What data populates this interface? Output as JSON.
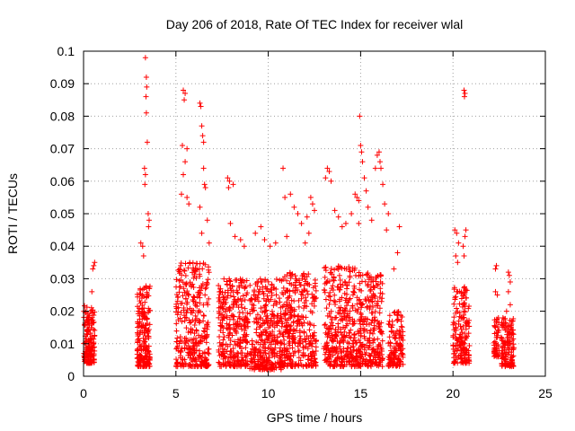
{
  "chart_data": {
    "type": "scatter",
    "title": "Day 206 of 2018, Rate Of TEC Index for receiver wlal",
    "xlabel": "GPS time / hours",
    "ylabel": "ROTI / TECUs",
    "xlim": [
      0,
      25
    ],
    "ylim": [
      0,
      0.1
    ],
    "xticks": [
      0,
      5,
      10,
      15,
      20,
      25
    ],
    "xtick_labels": [
      "0",
      "5",
      "10",
      "15",
      "20",
      "25"
    ],
    "yticks": [
      0,
      0.01,
      0.02,
      0.03,
      0.04,
      0.05,
      0.06,
      0.07,
      0.08,
      0.09,
      0.1
    ],
    "ytick_labels": [
      "0",
      "0.01",
      "0.02",
      "0.03",
      "0.04",
      "0.05",
      "0.06",
      "0.07",
      "0.08",
      "0.09",
      "0.1"
    ],
    "grid": true,
    "marker": "+",
    "marker_color": "#ff0000",
    "series": [
      {
        "name": "ROTI",
        "clusters": [
          {
            "t_start": 0.0,
            "t_end": 0.6,
            "low": 0.004,
            "high": 0.022,
            "n": 160
          },
          {
            "t_start": 2.9,
            "t_end": 3.6,
            "low": 0.003,
            "high": 0.028,
            "n": 200
          },
          {
            "t_start": 5.0,
            "t_end": 6.8,
            "low": 0.003,
            "high": 0.035,
            "n": 330
          },
          {
            "t_start": 7.3,
            "t_end": 8.9,
            "low": 0.003,
            "high": 0.03,
            "n": 300
          },
          {
            "t_start": 9.0,
            "t_end": 10.7,
            "low": 0.002,
            "high": 0.03,
            "n": 320
          },
          {
            "t_start": 10.7,
            "t_end": 12.6,
            "low": 0.003,
            "high": 0.032,
            "n": 340
          },
          {
            "t_start": 13.0,
            "t_end": 14.7,
            "low": 0.003,
            "high": 0.034,
            "n": 320
          },
          {
            "t_start": 14.7,
            "t_end": 16.2,
            "low": 0.003,
            "high": 0.032,
            "n": 280
          },
          {
            "t_start": 16.5,
            "t_end": 17.3,
            "low": 0.003,
            "high": 0.02,
            "n": 130
          },
          {
            "t_start": 20.0,
            "t_end": 20.9,
            "low": 0.004,
            "high": 0.028,
            "n": 170
          },
          {
            "t_start": 22.2,
            "t_end": 22.5,
            "low": 0.006,
            "high": 0.018,
            "n": 50
          },
          {
            "t_start": 22.6,
            "t_end": 23.3,
            "low": 0.003,
            "high": 0.018,
            "n": 130
          }
        ],
        "outliers": [
          [
            0.55,
            0.034
          ],
          [
            0.6,
            0.035
          ],
          [
            0.5,
            0.033
          ],
          [
            0.45,
            0.026
          ],
          [
            3.35,
            0.098
          ],
          [
            3.4,
            0.092
          ],
          [
            3.42,
            0.089
          ],
          [
            3.38,
            0.086
          ],
          [
            3.4,
            0.081
          ],
          [
            3.45,
            0.072
          ],
          [
            3.3,
            0.064
          ],
          [
            3.35,
            0.062
          ],
          [
            3.32,
            0.059
          ],
          [
            3.5,
            0.05
          ],
          [
            3.55,
            0.048
          ],
          [
            3.52,
            0.046
          ],
          [
            3.1,
            0.041
          ],
          [
            3.2,
            0.04
          ],
          [
            3.25,
            0.037
          ],
          [
            5.4,
            0.088
          ],
          [
            5.5,
            0.087
          ],
          [
            5.45,
            0.085
          ],
          [
            5.35,
            0.071
          ],
          [
            5.6,
            0.07
          ],
          [
            5.5,
            0.066
          ],
          [
            5.4,
            0.062
          ],
          [
            5.3,
            0.056
          ],
          [
            5.6,
            0.055
          ],
          [
            5.7,
            0.053
          ],
          [
            6.3,
            0.084
          ],
          [
            6.35,
            0.083
          ],
          [
            6.4,
            0.077
          ],
          [
            6.45,
            0.074
          ],
          [
            6.5,
            0.072
          ],
          [
            6.5,
            0.064
          ],
          [
            6.55,
            0.059
          ],
          [
            6.6,
            0.058
          ],
          [
            6.3,
            0.052
          ],
          [
            6.7,
            0.048
          ],
          [
            6.4,
            0.044
          ],
          [
            6.8,
            0.041
          ],
          [
            7.8,
            0.061
          ],
          [
            7.9,
            0.06
          ],
          [
            7.85,
            0.058
          ],
          [
            8.1,
            0.059
          ],
          [
            7.95,
            0.047
          ],
          [
            8.2,
            0.043
          ],
          [
            8.5,
            0.042
          ],
          [
            8.7,
            0.04
          ],
          [
            9.3,
            0.044
          ],
          [
            9.6,
            0.046
          ],
          [
            9.8,
            0.042
          ],
          [
            10.1,
            0.04
          ],
          [
            10.4,
            0.041
          ],
          [
            10.8,
            0.064
          ],
          [
            10.9,
            0.055
          ],
          [
            11.2,
            0.056
          ],
          [
            11.4,
            0.052
          ],
          [
            11.0,
            0.043
          ],
          [
            11.6,
            0.05
          ],
          [
            11.8,
            0.047
          ],
          [
            12.1,
            0.049
          ],
          [
            12.3,
            0.055
          ],
          [
            12.4,
            0.053
          ],
          [
            12.5,
            0.051
          ],
          [
            12.2,
            0.044
          ],
          [
            12.0,
            0.041
          ],
          [
            13.2,
            0.064
          ],
          [
            13.3,
            0.063
          ],
          [
            13.1,
            0.061
          ],
          [
            13.4,
            0.06
          ],
          [
            13.6,
            0.051
          ],
          [
            13.8,
            0.049
          ],
          [
            14.0,
            0.046
          ],
          [
            14.2,
            0.047
          ],
          [
            14.5,
            0.05
          ],
          [
            14.7,
            0.056
          ],
          [
            14.8,
            0.055
          ],
          [
            14.9,
            0.054
          ],
          [
            14.95,
            0.08
          ],
          [
            15.0,
            0.071
          ],
          [
            15.05,
            0.069
          ],
          [
            15.1,
            0.066
          ],
          [
            15.2,
            0.061
          ],
          [
            15.3,
            0.057
          ],
          [
            14.9,
            0.047
          ],
          [
            15.4,
            0.052
          ],
          [
            15.6,
            0.048
          ],
          [
            15.8,
            0.064
          ],
          [
            15.9,
            0.068
          ],
          [
            16.0,
            0.069
          ],
          [
            16.05,
            0.066
          ],
          [
            16.1,
            0.064
          ],
          [
            16.2,
            0.059
          ],
          [
            16.3,
            0.053
          ],
          [
            16.4,
            0.045
          ],
          [
            16.5,
            0.05
          ],
          [
            17.1,
            0.046
          ],
          [
            16.8,
            0.033
          ],
          [
            17.0,
            0.038
          ],
          [
            20.1,
            0.045
          ],
          [
            20.2,
            0.044
          ],
          [
            20.3,
            0.041
          ],
          [
            20.15,
            0.037
          ],
          [
            20.25,
            0.035
          ],
          [
            20.6,
            0.088
          ],
          [
            20.65,
            0.087
          ],
          [
            20.62,
            0.086
          ],
          [
            20.7,
            0.045
          ],
          [
            20.65,
            0.043
          ],
          [
            20.55,
            0.04
          ],
          [
            20.6,
            0.037
          ],
          [
            22.3,
            0.033
          ],
          [
            22.35,
            0.034
          ],
          [
            22.3,
            0.026
          ],
          [
            22.4,
            0.025
          ],
          [
            23.0,
            0.032
          ],
          [
            23.05,
            0.031
          ],
          [
            23.1,
            0.029
          ],
          [
            23.0,
            0.026
          ],
          [
            23.1,
            0.022
          ],
          [
            22.9,
            0.02
          ]
        ]
      }
    ]
  }
}
